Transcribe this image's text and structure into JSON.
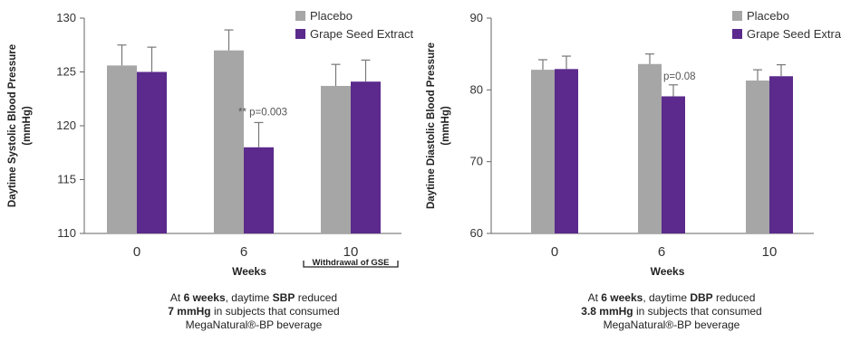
{
  "chart_data": [
    {
      "type": "bar",
      "ylabel": "Daytime Systolic Blood Pressure (mmHg)",
      "xlabel": "Weeks",
      "categories": [
        "0",
        "6",
        "10"
      ],
      "ylim": [
        110,
        130
      ],
      "yticks": [
        "110",
        "115",
        "120",
        "125",
        "130"
      ],
      "series": [
        {
          "name": "Placebo",
          "color": "#a6a6a6",
          "values": [
            125.6,
            127.0,
            123.7
          ],
          "errors": [
            1.9,
            1.9,
            2.0
          ]
        },
        {
          "name": "Grape Seed Extract",
          "color": "#5b2a8c",
          "values": [
            125.0,
            118.0,
            124.1
          ],
          "errors": [
            2.3,
            2.3,
            2.0
          ]
        }
      ],
      "annotation": {
        "text": "** p=0.003",
        "category": "6"
      },
      "bracket_label": {
        "text": "Withdrawal of GSE",
        "category": "10"
      },
      "grid": false,
      "legend": "top-right"
    },
    {
      "type": "bar",
      "ylabel": "Daytime Diastolic Blood Pressure (mmHg)",
      "xlabel": "Weeks",
      "categories": [
        "0",
        "6",
        "10"
      ],
      "ylim": [
        60,
        90
      ],
      "yticks": [
        "60",
        "70",
        "80",
        "90"
      ],
      "series": [
        {
          "name": "Placebo",
          "color": "#a6a6a6",
          "values": [
            82.8,
            83.6,
            81.3
          ],
          "errors": [
            1.4,
            1.4,
            1.5
          ]
        },
        {
          "name": "Grape Seed Extract",
          "color": "#5b2a8c",
          "values": [
            82.9,
            79.1,
            81.9
          ],
          "errors": [
            1.8,
            1.6,
            1.6
          ]
        }
      ],
      "annotation": {
        "text": "p=0.08",
        "category": "6"
      },
      "grid": false,
      "legend": "top-right"
    }
  ],
  "captions": [
    {
      "line1_pre": "At ",
      "line1_bold1": "6 weeks",
      "line1_mid": ", daytime ",
      "line1_bold2": "SBP",
      "line1_post": " reduced",
      "line2_bold": "7 mmHg",
      "line2_post": " in subjects that consumed",
      "line3": "MegaNatural®-BP beverage"
    },
    {
      "line1_pre": "At ",
      "line1_bold1": "6 weeks",
      "line1_mid": ", daytime ",
      "line1_bold2": "DBP",
      "line1_post": " reduced",
      "line2_bold": "3.8 mmHg",
      "line2_post": " in subjects that consumed",
      "line3": "MegaNatural®-BP beverage"
    }
  ]
}
